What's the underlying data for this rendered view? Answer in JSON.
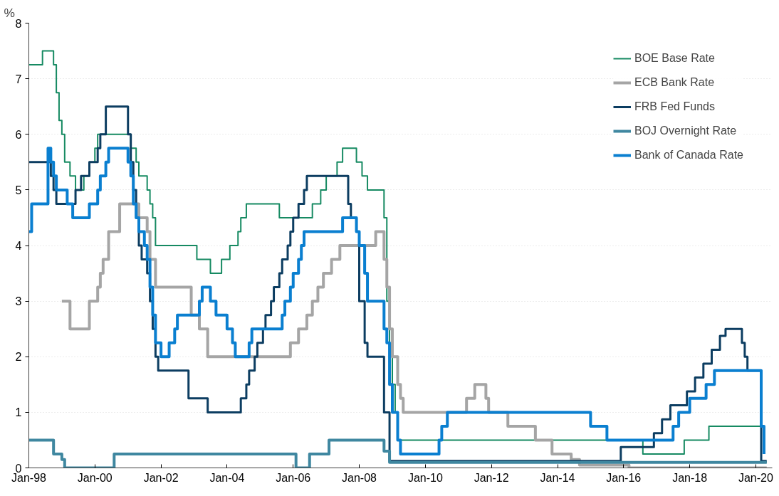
{
  "chart_data": {
    "type": "step",
    "ylabel": "%",
    "xlim": [
      "1998-01",
      "2020-07"
    ],
    "ylim": [
      0,
      8
    ],
    "yticks": [
      0,
      1,
      2,
      3,
      4,
      5,
      6,
      7,
      8
    ],
    "xticks": [
      {
        "value": "1998-01",
        "label": "Jan-98"
      },
      {
        "value": "2000-01",
        "label": "Jan-00"
      },
      {
        "value": "2002-01",
        "label": "Jan-02"
      },
      {
        "value": "2004-01",
        "label": "Jan-04"
      },
      {
        "value": "2006-01",
        "label": "Jan-06"
      },
      {
        "value": "2008-01",
        "label": "Jan-08"
      },
      {
        "value": "2010-01",
        "label": "Jan-10"
      },
      {
        "value": "2012-01",
        "label": "Jan-12"
      },
      {
        "value": "2014-01",
        "label": "Jan-14"
      },
      {
        "value": "2016-01",
        "label": "Jan-16"
      },
      {
        "value": "2018-01",
        "label": "Jan-18"
      },
      {
        "value": "2020-01",
        "label": "Jan-20"
      }
    ],
    "grid": "y",
    "legend": "top right",
    "line_style": "solid",
    "marker": "none",
    "series": [
      {
        "name": "BOE Base Rate",
        "color": "#168a62",
        "x": [
          "1998-01",
          "1998-06",
          "1998-10",
          "1998-11",
          "1998-12",
          "1999-01",
          "1999-02",
          "1999-04",
          "1999-06",
          "1999-09",
          "1999-11",
          "2000-01",
          "2000-02",
          "2001-02",
          "2001-04",
          "2001-05",
          "2001-08",
          "2001-09",
          "2001-10",
          "2001-11",
          "2003-02",
          "2003-07",
          "2003-11",
          "2004-02",
          "2004-05",
          "2004-06",
          "2004-08",
          "2005-08",
          "2006-08",
          "2006-11",
          "2007-01",
          "2007-05",
          "2007-07",
          "2007-12",
          "2008-02",
          "2008-04",
          "2008-10",
          "2008-11",
          "2008-12",
          "2009-01",
          "2009-02",
          "2009-03",
          "2016-08",
          "2017-11",
          "2018-08",
          "2020-03",
          "2020-05"
        ],
        "values": [
          7.25,
          7.5,
          7.25,
          6.75,
          6.25,
          6.0,
          5.5,
          5.25,
          5.0,
          5.25,
          5.5,
          5.75,
          6.0,
          5.75,
          5.5,
          5.25,
          5.0,
          4.75,
          4.5,
          4.0,
          3.75,
          3.5,
          3.75,
          4.0,
          4.25,
          4.5,
          4.75,
          4.5,
          4.75,
          5.0,
          5.25,
          5.5,
          5.75,
          5.5,
          5.25,
          5.0,
          4.5,
          3.0,
          2.0,
          1.5,
          1.0,
          0.5,
          0.25,
          0.5,
          0.75,
          0.1,
          0.1
        ]
      },
      {
        "name": "ECB Bank Rate",
        "color": "#a5a5a5",
        "x": [
          "1999-01",
          "1999-04",
          "1999-11",
          "2000-02",
          "2000-03",
          "2000-04",
          "2000-06",
          "2000-10",
          "2001-05",
          "2001-08",
          "2001-09",
          "2001-11",
          "2002-12",
          "2003-03",
          "2003-06",
          "2005-12",
          "2006-03",
          "2006-06",
          "2006-08",
          "2006-10",
          "2006-12",
          "2007-03",
          "2007-06",
          "2008-07",
          "2008-10",
          "2008-11",
          "2008-12",
          "2009-01",
          "2009-03",
          "2009-04",
          "2009-05",
          "2011-04",
          "2011-07",
          "2011-11",
          "2011-12",
          "2012-07",
          "2013-05",
          "2013-11",
          "2014-06",
          "2014-09",
          "2016-03",
          "2020-05"
        ],
        "values": [
          3.0,
          2.5,
          3.0,
          3.25,
          3.5,
          3.75,
          4.25,
          4.75,
          4.5,
          4.25,
          3.75,
          3.25,
          2.75,
          2.5,
          2.0,
          2.25,
          2.5,
          2.75,
          3.0,
          3.25,
          3.5,
          3.75,
          4.0,
          4.25,
          3.75,
          3.25,
          2.5,
          2.0,
          1.5,
          1.25,
          1.0,
          1.25,
          1.5,
          1.25,
          1.0,
          0.75,
          0.5,
          0.25,
          0.15,
          0.05,
          0.0,
          0.0
        ]
      },
      {
        "name": "FRB Fed Funds",
        "color": "#0c3d61",
        "x": [
          "1998-01",
          "1998-09",
          "1998-10",
          "1998-11",
          "1999-06",
          "1999-08",
          "1999-11",
          "2000-02",
          "2000-03",
          "2000-05",
          "2001-01",
          "2001-02",
          "2001-03",
          "2001-04",
          "2001-05",
          "2001-06",
          "2001-08",
          "2001-09",
          "2001-10",
          "2001-11",
          "2001-12",
          "2002-11",
          "2003-06",
          "2004-06",
          "2004-08",
          "2004-09",
          "2004-11",
          "2004-12",
          "2005-02",
          "2005-03",
          "2005-05",
          "2005-06",
          "2005-08",
          "2005-09",
          "2005-11",
          "2005-12",
          "2006-01",
          "2006-03",
          "2006-05",
          "2006-06",
          "2007-09",
          "2007-10",
          "2007-12",
          "2008-01",
          "2008-03",
          "2008-04",
          "2008-10",
          "2008-12",
          "2015-12",
          "2016-12",
          "2017-03",
          "2017-06",
          "2017-12",
          "2018-03",
          "2018-06",
          "2018-09",
          "2018-12",
          "2019-02",
          "2019-08",
          "2019-09",
          "2019-10",
          "2020-03",
          "2020-05"
        ],
        "values": [
          5.5,
          5.25,
          5.0,
          4.75,
          5.0,
          5.25,
          5.5,
          5.75,
          6.0,
          6.5,
          6.0,
          5.5,
          5.0,
          4.5,
          4.0,
          3.75,
          3.5,
          3.0,
          2.5,
          2.0,
          1.75,
          1.25,
          1.0,
          1.25,
          1.5,
          1.75,
          2.0,
          2.25,
          2.5,
          2.75,
          3.0,
          3.25,
          3.5,
          3.75,
          4.0,
          4.25,
          4.5,
          4.75,
          5.0,
          5.25,
          4.75,
          4.5,
          4.25,
          3.0,
          2.25,
          2.0,
          1.0,
          0.125,
          0.375,
          0.625,
          0.875,
          1.125,
          1.375,
          1.625,
          1.875,
          2.125,
          2.375,
          2.5,
          2.25,
          2.0,
          1.75,
          0.125,
          0.125
        ]
      },
      {
        "name": "BOJ Overnight Rate",
        "color": "#3f87a0",
        "x": [
          "1998-01",
          "1998-10",
          "1999-01",
          "1999-02",
          "2000-08",
          "2006-02",
          "2006-07",
          "2007-02",
          "2008-10",
          "2008-12",
          "2020-05"
        ],
        "values": [
          0.5,
          0.25,
          0.15,
          0.0,
          0.25,
          0.0,
          0.25,
          0.5,
          0.3,
          0.1,
          0.1
        ]
      },
      {
        "name": "Bank of Canada Rate",
        "color": "#0a7fd0",
        "x": [
          "1998-01",
          "1998-02",
          "1998-08",
          "1998-09",
          "1998-10",
          "1998-11",
          "1999-03",
          "1999-05",
          "1999-11",
          "2000-02",
          "2000-03",
          "2000-05",
          "2000-06",
          "2001-01",
          "2001-02",
          "2001-03",
          "2001-04",
          "2001-05",
          "2001-07",
          "2001-08",
          "2001-09",
          "2001-10",
          "2001-11",
          "2002-01",
          "2002-04",
          "2002-06",
          "2002-07",
          "2003-03",
          "2003-04",
          "2003-07",
          "2003-09",
          "2004-01",
          "2004-03",
          "2004-04",
          "2004-09",
          "2004-10",
          "2005-09",
          "2005-10",
          "2005-12",
          "2006-01",
          "2006-03",
          "2006-04",
          "2006-05",
          "2007-07",
          "2007-12",
          "2008-01",
          "2008-03",
          "2008-04",
          "2008-10",
          "2008-11",
          "2008-12",
          "2009-01",
          "2009-03",
          "2009-04",
          "2010-06",
          "2010-07",
          "2010-09",
          "2015-01",
          "2015-07",
          "2017-07",
          "2017-09",
          "2018-01",
          "2018-07",
          "2018-10",
          "2020-03",
          "2020-04"
        ],
        "values": [
          4.25,
          4.75,
          5.75,
          5.5,
          5.25,
          5.0,
          4.75,
          4.5,
          4.75,
          5.0,
          5.25,
          5.5,
          5.75,
          5.5,
          5.25,
          4.75,
          4.5,
          4.25,
          4.0,
          3.75,
          3.25,
          2.75,
          2.25,
          2.0,
          2.25,
          2.5,
          2.75,
          3.0,
          3.25,
          3.0,
          2.75,
          2.5,
          2.25,
          2.0,
          2.25,
          2.5,
          2.75,
          3.0,
          3.25,
          3.5,
          3.75,
          4.0,
          4.25,
          4.5,
          4.25,
          4.0,
          3.5,
          3.0,
          2.5,
          2.25,
          1.5,
          1.0,
          0.5,
          0.25,
          0.5,
          0.75,
          1.0,
          0.75,
          0.5,
          0.75,
          1.0,
          1.25,
          1.5,
          1.75,
          0.75,
          0.25
        ]
      }
    ]
  }
}
